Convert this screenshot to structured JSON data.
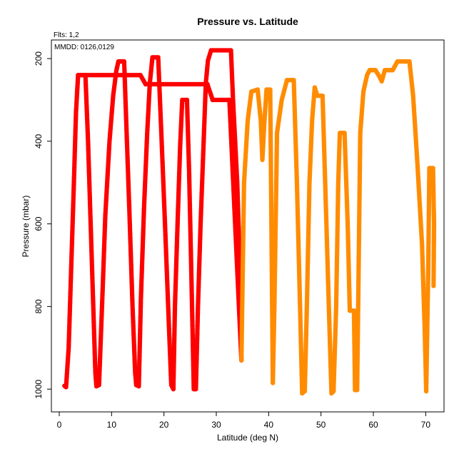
{
  "chart_data": {
    "type": "scatter",
    "title": "Pressure vs. Latitude",
    "xlabel": "Latitude (deg N)",
    "ylabel": "Pressure (mbar)",
    "annotations": [
      "Flts: 1,2",
      "MMDD: 0126,0129"
    ],
    "xlim": [
      -1.5,
      73.5
    ],
    "ylim": [
      1055,
      155
    ],
    "y_axis_inverted": true,
    "xticks": [
      "0",
      "10",
      "20",
      "30",
      "40",
      "50",
      "60",
      "70"
    ],
    "yticks": [
      "200",
      "400",
      "600",
      "800",
      "1000"
    ],
    "grid": false,
    "legend": "none",
    "series": [
      {
        "color": "#ff0000",
        "vertices": [
          [
            1.0,
            992
          ],
          [
            1.3,
            995
          ],
          [
            1.8,
            900
          ],
          [
            2.3,
            700
          ],
          [
            2.8,
            500
          ],
          [
            3.2,
            330
          ],
          [
            3.6,
            240
          ],
          [
            4.2,
            240
          ],
          [
            5.0,
            240
          ],
          [
            5.5,
            400
          ],
          [
            6.0,
            600
          ],
          [
            6.5,
            800
          ],
          [
            6.9,
            960
          ],
          [
            7.1,
            993
          ],
          [
            7.6,
            990
          ],
          [
            8.2,
            790
          ],
          [
            8.8,
            580
          ],
          [
            9.6,
            400
          ],
          [
            10.3,
            290
          ],
          [
            10.9,
            230
          ],
          [
            11.3,
            207
          ],
          [
            12.4,
            207
          ],
          [
            12.9,
            390
          ],
          [
            13.4,
            570
          ],
          [
            14.0,
            800
          ],
          [
            14.5,
            960
          ],
          [
            14.7,
            990
          ],
          [
            15.2,
            993
          ],
          [
            15.6,
            780
          ],
          [
            16.2,
            560
          ],
          [
            16.8,
            380
          ],
          [
            17.3,
            260
          ],
          [
            17.8,
            197
          ],
          [
            18.9,
            197
          ],
          [
            19.5,
            380
          ],
          [
            20.2,
            600
          ],
          [
            20.9,
            830
          ],
          [
            21.4,
            990
          ],
          [
            21.8,
            1000
          ],
          [
            22.1,
            800
          ],
          [
            22.6,
            600
          ],
          [
            23.1,
            410
          ],
          [
            23.5,
            300
          ],
          [
            24.4,
            300
          ],
          [
            24.8,
            470
          ],
          [
            25.2,
            700
          ],
          [
            25.7,
            1000
          ],
          [
            26.1,
            1000
          ],
          [
            26.5,
            800
          ],
          [
            27.0,
            600
          ],
          [
            27.5,
            430
          ],
          [
            28.0,
            260
          ],
          [
            28.4,
            205
          ],
          [
            29.0,
            180
          ],
          [
            32.8,
            180
          ],
          [
            33.2,
            300
          ],
          [
            34.0,
            500
          ],
          [
            34.5,
            700
          ],
          [
            34.8,
            930
          ]
        ],
        "segment_raw": [
          [
            3.6,
            240,
            15.5,
            240
          ],
          [
            15.5,
            240,
            16.5,
            262
          ],
          [
            16.5,
            262,
            28.3,
            262
          ],
          [
            28.3,
            262,
            29.3,
            300
          ],
          [
            29.3,
            300,
            32.5,
            300
          ],
          [
            32.5,
            300,
            34.8,
            930
          ]
        ]
      },
      {
        "color": "#ff8c00",
        "vertices": [
          [
            34.8,
            930
          ],
          [
            35.3,
            500
          ],
          [
            36.0,
            350
          ],
          [
            36.7,
            280
          ],
          [
            37.9,
            275
          ],
          [
            38.5,
            350
          ],
          [
            38.8,
            445
          ],
          [
            39.2,
            350
          ],
          [
            39.6,
            275
          ],
          [
            40.3,
            275
          ],
          [
            40.6,
            700
          ],
          [
            40.8,
            985
          ],
          [
            41.1,
            800
          ],
          [
            41.6,
            380
          ],
          [
            42.5,
            300
          ],
          [
            43.5,
            252
          ],
          [
            44.8,
            252
          ],
          [
            45.4,
            500
          ],
          [
            46.0,
            800
          ],
          [
            46.4,
            1010
          ],
          [
            46.9,
            1005
          ],
          [
            47.3,
            800
          ],
          [
            47.8,
            500
          ],
          [
            48.3,
            350
          ],
          [
            48.8,
            270
          ],
          [
            49.3,
            290
          ],
          [
            50.3,
            290
          ],
          [
            50.8,
            500
          ],
          [
            51.5,
            800
          ],
          [
            52.0,
            1010
          ],
          [
            52.4,
            1005
          ],
          [
            52.9,
            800
          ],
          [
            53.3,
            500
          ],
          [
            53.6,
            380
          ],
          [
            54.5,
            380
          ],
          [
            55.1,
            600
          ],
          [
            55.5,
            810
          ],
          [
            56.3,
            810
          ],
          [
            56.5,
            1002
          ],
          [
            56.9,
            1002
          ],
          [
            57.2,
            700
          ],
          [
            57.5,
            380
          ],
          [
            58.1,
            280
          ],
          [
            58.8,
            240
          ],
          [
            59.3,
            228
          ],
          [
            60.4,
            228
          ],
          [
            61.0,
            240
          ],
          [
            61.6,
            255
          ],
          [
            62.2,
            228
          ],
          [
            63.7,
            228
          ],
          [
            64.6,
            207
          ],
          [
            66.9,
            207
          ],
          [
            67.6,
            290
          ],
          [
            68.4,
            450
          ],
          [
            69.3,
            650
          ],
          [
            69.8,
            850
          ],
          [
            70.1,
            1005
          ],
          [
            70.5,
            700
          ],
          [
            70.7,
            465
          ],
          [
            71.4,
            465
          ],
          [
            71.6,
            600
          ],
          [
            71.5,
            750
          ]
        ]
      }
    ]
  }
}
